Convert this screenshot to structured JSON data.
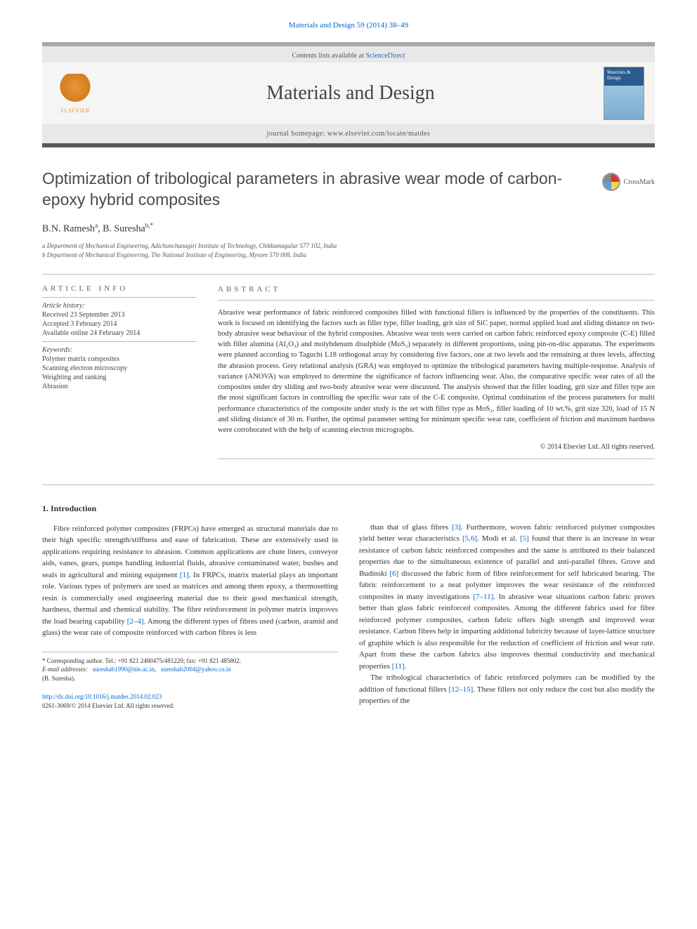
{
  "citation": "Materials and Design 59 (2014) 38–49",
  "header": {
    "contents_prefix": "Contents lists available at ",
    "contents_link": "ScienceDirect",
    "journal": "Materials and Design",
    "homepage_prefix": "journal homepage: ",
    "homepage_url": "www.elsevier.com/locate/matdes",
    "publisher_logo": "ELSEVIER",
    "cover_text": "Materials & Design"
  },
  "title": "Optimization of tribological parameters in abrasive wear mode of carbon-epoxy hybrid composites",
  "crossmark": "CrossMark",
  "authors_html": "B.N. Ramesh",
  "authors": [
    {
      "name": "B.N. Ramesh",
      "aff": "a"
    },
    {
      "name": "B. Suresha",
      "aff": "b,*"
    }
  ],
  "affiliations": [
    "a Department of Mechanical Engineering, Adichunchanagiri Institute of Technology, Chikkamagalur 577 102, India",
    "b Department of Mechanical Engineering, The National Institute of Engineering, Mysore 570 008, India"
  ],
  "article_info": {
    "heading": "ARTICLE INFO",
    "history_label": "Article history:",
    "received": "Received 23 September 2013",
    "accepted": "Accepted 3 February 2014",
    "online": "Available online 24 February 2014",
    "keywords_label": "Keywords:",
    "keywords": [
      "Polymer matrix composites",
      "Scanning electron microscopy",
      "Weighting and ranking",
      "Abrasion"
    ]
  },
  "abstract": {
    "heading": "ABSTRACT",
    "text": "Abrasive wear performance of fabric reinforced composites filled with functional fillers is influenced by the properties of the constituents. This work is focused on identifying the factors such as filler type, filler loading, grit size of SiC paper, normal applied load and sliding distance on two-body abrasive wear behaviour of the hybrid composites. Abrasive wear tests were carried on carbon fabric reinforced epoxy composite (C-E) filled with filler alumina (Al₂O₃) and molybdenum disulphide (MoS₂) separately in different proportions, using pin-on-disc apparatus. The experiments were planned according to Taguchi L18 orthogonal array by considering five factors, one at two levels and the remaining at three levels, affecting the abrasion process. Grey relational analysis (GRA) was employed to optimize the tribological parameters having multiple-response. Analysis of variance (ANOVA) was employed to determine the significance of factors influencing wear. Also, the comparative specific wear rates of all the composites under dry sliding and two-body abrasive wear were discussed. The analysis showed that the filler loading, grit size and filler type are the most significant factors in controlling the specific wear rate of the C-E composite. Optimal combination of the process parameters for multi performance characteristics of the composite under study is the set with filler type as MoS₂, filler loading of 10 wt.%, grit size 320, load of 15 N and sliding distance of 30 m. Further, the optimal parameter setting for minimum specific wear rate, coefficient of friction and maximum hardness were corroborated with the help of scanning electron micrographs.",
    "copyright": "© 2014 Elsevier Ltd. All rights reserved."
  },
  "section1": {
    "heading": "1. Introduction",
    "col1": "Fibre reinforced polymer composites (FRPCs) have emerged as structural materials due to their high specific strength/stiffness and ease of fabrication. These are extensively used in applications requiring resistance to abrasion. Common applications are chute liners, conveyor aids, vanes, gears, pumps handling industrial fluids, abrasive contaminated water, bushes and seals in agricultural and mining equipment [1]. In FRPCs, matrix material plays an important role. Various types of polymers are used as matrices and among them epoxy, a thermosetting resin is commercially used engineering material due to their good mechanical strength, hardness, thermal and chemical stability. The fibre reinforcement in polymer matrix improves the load bearing capability [2–4]. Among the different types of fibres used (carbon, aramid and glass) the wear rate of composite reinforced with carbon fibres is less",
    "col2_p1": "than that of glass fibres [3]. Furthermore, woven fabric reinforced polymer composites yield better wear characteristics [5,6]. Modi et al. [5] found that there is an increase in wear resistance of carbon fabric reinforced composites and the same is attributed to their balanced properties due to the simultaneous existence of parallel and anti-parallel fibres. Grove and Budinski [6] discussed the fabric form of fibre reinforcement for self lubricated bearing. The fabric reinforcement to a neat polymer improves the wear resistance of the reinforced composites in many investigations [7–11]. In abrasive wear situations carbon fabric proves better than glass fabric reinforced composites. Among the different fabrics used for fibre reinforced polymer composites, carbon fabric offers high strength and improved wear resistance. Carbon fibres help in imparting additional lubricity because of layer-lattice structure of graphite which is also responsible for the reduction of coefficient of friction and wear rate. Apart from these the carbon fabrics also improves thermal conductivity and mechanical properties [11].",
    "col2_p2": "The tribological characteristics of fabric reinforced polymers can be modified by the addition of functional fillers [12–15]. These fillers not only reduce the cost but also modify the properties of the"
  },
  "footnote": {
    "corr": "* Corresponding author. Tel.: +91 821 2480475/481220; fax: +91 821 485802.",
    "email_label": "E-mail addresses:",
    "email1": "sureshab1990@nie.ac.in",
    "email2": "sureshab2004@yahoo.co.in",
    "email_name": "(B. Suresha)."
  },
  "doi": {
    "url": "http://dx.doi.org/10.1016/j.matdes.2014.02.023",
    "issn": "0261-3069/© 2014 Elsevier Ltd. All rights reserved."
  },
  "refs": {
    "r1": "[1]",
    "r24": "[2–4]",
    "r3": "[3]",
    "r56": "[5,6]",
    "r5": "[5]",
    "r6": "[6]",
    "r711": "[7–11]",
    "r11": "[11]",
    "r1215": "[12–15]"
  }
}
